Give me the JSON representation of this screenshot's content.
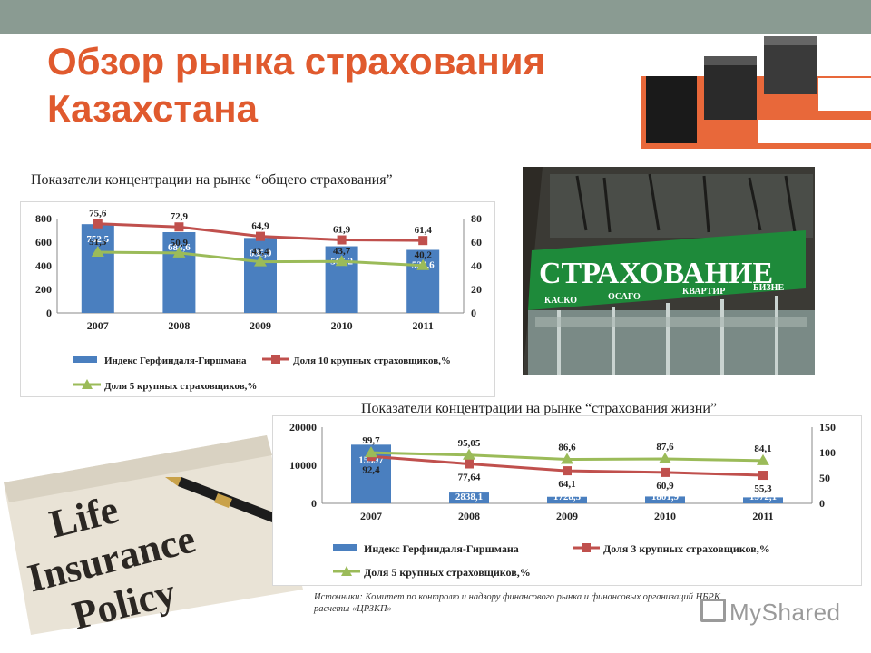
{
  "slide": {
    "title_line1": "Обзор рынка страхования",
    "title_line2": "Казахстана",
    "accent_color": "#e05a2e",
    "topbar_color": "#8a9b92"
  },
  "chart_data": [
    {
      "type": "bar",
      "title": "Показатели концентрации на рынке “общего страхования”",
      "categories": [
        "2007",
        "2008",
        "2009",
        "2010",
        "2011"
      ],
      "ylim_left": [
        0,
        800
      ],
      "yticks_left": [
        "0",
        "200",
        "400",
        "600",
        "800"
      ],
      "ylim_right": [
        0,
        80
      ],
      "yticks_right": [
        "0",
        "20",
        "40",
        "60",
        "80"
      ],
      "series": [
        {
          "name": "Индекс Герфиндаля-Гиршмана",
          "kind": "bar",
          "axis": "left",
          "color": "#4a7fbf",
          "values": [
            752.5,
            684.6,
            635.9,
            565.2,
            534.6
          ],
          "labels": [
            "752,5",
            "684,6",
            "635,9",
            "565,2",
            "534,6"
          ]
        },
        {
          "name": "Доля 10 крупных страховщиков,%",
          "kind": "line",
          "axis": "right",
          "color": "#c0504d",
          "values": [
            75.6,
            72.9,
            64.9,
            61.9,
            61.4
          ],
          "labels": [
            "75,6",
            "72,9",
            "64,9",
            "61,9",
            "61,4"
          ]
        },
        {
          "name": "Доля 5 крупных страховщиков,%",
          "kind": "line",
          "axis": "right",
          "color": "#9bbb59",
          "values": [
            51.5,
            50.9,
            43.4,
            43.7,
            40.2
          ],
          "labels": [
            "51,5",
            "50,9",
            "43,4",
            "43,7",
            "40,2"
          ]
        }
      ],
      "legend": "bottom",
      "grid": false
    },
    {
      "type": "bar",
      "title": "Показатели концентрации на рынке “страхования жизни”",
      "categories": [
        "2007",
        "2008",
        "2009",
        "2010",
        "2011"
      ],
      "ylim_left": [
        0,
        20000
      ],
      "yticks_left": [
        "0",
        "10000",
        "20000"
      ],
      "ylim_right": [
        0,
        150
      ],
      "yticks_right": [
        "0",
        "50",
        "100",
        "150"
      ],
      "series": [
        {
          "name": "Индекс Герфиндаля-Гиршмана",
          "kind": "bar",
          "axis": "left",
          "color": "#4a7fbf",
          "values": [
            15397,
            2838.1,
            1728.5,
            1801.9,
            1572.1
          ],
          "labels": [
            "15397",
            "2838,1",
            "1728,5",
            "1801,9",
            "1572,1"
          ]
        },
        {
          "name": "Доля 3 крупных страховщиков,%",
          "kind": "line",
          "axis": "right",
          "color": "#c0504d",
          "values": [
            92.4,
            77.64,
            64.1,
            60.9,
            55.3
          ],
          "labels": [
            "92,4",
            "77,64",
            "64,1",
            "60,9",
            "55,3"
          ]
        },
        {
          "name": "Доля 5 крупных страховщиков,%",
          "kind": "line",
          "axis": "right",
          "color": "#9bbb59",
          "values": [
            99.7,
            95.05,
            86.6,
            87.6,
            84.1
          ],
          "labels": [
            "99,7",
            "95,05",
            "86,6",
            "87,6",
            "84,1"
          ]
        }
      ],
      "legend": "bottom",
      "grid": false
    }
  ],
  "photo_sign": {
    "word": "СТРАХОВАНИЕ",
    "sub_labels": [
      "КАСКО",
      "ОСАГО",
      "КВАРТИР",
      "БИЗНЕ"
    ]
  },
  "photo_policy": {
    "lines": [
      "Life",
      "Insurance",
      "Policy"
    ]
  },
  "source": {
    "line1": "Источники: Комитет по контролю и надзору финансового рынка и финансовых организаций НБРК,",
    "line2": "расчеты «ЦРЗКП»"
  },
  "watermark": {
    "text": "MyShared",
    "icon": "presentation-board-icon"
  }
}
